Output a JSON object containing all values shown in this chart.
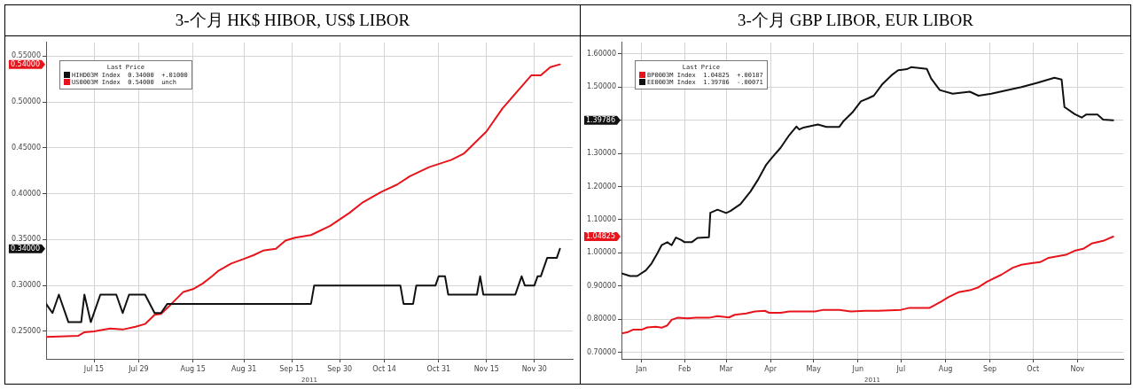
{
  "chart_data": [
    {
      "type": "line",
      "title": "3-个月  HK$ HIBOR, US$ LIBOR",
      "xlabel": "2011",
      "legend_title": "Last Price",
      "legend": "top left",
      "grid": true,
      "marker": "none",
      "xlim": [
        "2011-06-30",
        "2011-12-12"
      ],
      "xticks": [
        {
          "value": "2011-07-15",
          "label": "Jul 15"
        },
        {
          "value": "2011-07-29",
          "label": "Jul 29"
        },
        {
          "value": "2011-08-15",
          "label": "Aug 15"
        },
        {
          "value": "2011-08-31",
          "label": "Aug 31"
        },
        {
          "value": "2011-09-15",
          "label": "Sep 15"
        },
        {
          "value": "2011-09-30",
          "label": "Sep 30"
        },
        {
          "value": "2011-10-14",
          "label": "Oct 14"
        },
        {
          "value": "2011-10-31",
          "label": "Oct 31"
        },
        {
          "value": "2011-11-15",
          "label": "Nov 15"
        },
        {
          "value": "2011-11-30",
          "label": "Nov 30"
        }
      ],
      "ylim": [
        0.22,
        0.565
      ],
      "yticks": [
        {
          "value": 0.25,
          "label": "0.25000"
        },
        {
          "value": 0.3,
          "label": "0.30000"
        },
        {
          "value": 0.35,
          "label": "0.35000"
        },
        {
          "value": 0.4,
          "label": "0.40000"
        },
        {
          "value": 0.45,
          "label": "0.45000"
        },
        {
          "value": 0.5,
          "label": "0.50000"
        },
        {
          "value": 0.55,
          "label": "0.55000"
        }
      ],
      "annotations": [
        "0.34000",
        "0.54000"
      ],
      "series": [
        {
          "name": "HIHD03M Index  0.34000  +.01000",
          "color": "#111111",
          "x": [
            "2011-06-30",
            "2011-07-02",
            "2011-07-04",
            "2011-07-07",
            "2011-07-11",
            "2011-07-12",
            "2011-07-14",
            "2011-07-17",
            "2011-07-22",
            "2011-07-24",
            "2011-07-26",
            "2011-07-31",
            "2011-08-03",
            "2011-08-05",
            "2011-08-07",
            "2011-09-21",
            "2011-09-22",
            "2011-10-19",
            "2011-10-20",
            "2011-10-23",
            "2011-10-24",
            "2011-10-30",
            "2011-10-31",
            "2011-11-02",
            "2011-11-03",
            "2011-11-12",
            "2011-11-13",
            "2011-11-14",
            "2011-11-24",
            "2011-11-26",
            "2011-11-27",
            "2011-11-30",
            "2011-12-01",
            "2011-12-02",
            "2011-12-04",
            "2011-12-07",
            "2011-12-08"
          ],
          "values": [
            0.28,
            0.27,
            0.29,
            0.26,
            0.26,
            0.29,
            0.26,
            0.29,
            0.29,
            0.27,
            0.29,
            0.29,
            0.27,
            0.27,
            0.28,
            0.28,
            0.3,
            0.3,
            0.28,
            0.28,
            0.3,
            0.3,
            0.31,
            0.31,
            0.29,
            0.29,
            0.31,
            0.29,
            0.29,
            0.31,
            0.3,
            0.3,
            0.31,
            0.31,
            0.33,
            0.33,
            0.34
          ]
        },
        {
          "name": "US0003M Index  0.54000  unch",
          "color": "#e8141b",
          "x": [
            "2011-06-30",
            "2011-07-10",
            "2011-07-12",
            "2011-07-15",
            "2011-07-20",
            "2011-07-24",
            "2011-07-28",
            "2011-07-31",
            "2011-08-03",
            "2011-08-05",
            "2011-08-08",
            "2011-08-12",
            "2011-08-15",
            "2011-08-18",
            "2011-08-21",
            "2011-08-23",
            "2011-08-27",
            "2011-08-31",
            "2011-09-03",
            "2011-09-06",
            "2011-09-10",
            "2011-09-13",
            "2011-09-16",
            "2011-09-21",
            "2011-09-27",
            "2011-10-03",
            "2011-10-07",
            "2011-10-13",
            "2011-10-18",
            "2011-10-22",
            "2011-10-28",
            "2011-11-04",
            "2011-11-08",
            "2011-11-15",
            "2011-11-20",
            "2011-11-25",
            "2011-11-29",
            "2011-12-02",
            "2011-12-05",
            "2011-12-08"
          ],
          "values": [
            0.244,
            0.245,
            0.249,
            0.25,
            0.253,
            0.252,
            0.255,
            0.258,
            0.268,
            0.269,
            0.279,
            0.293,
            0.296,
            0.302,
            0.31,
            0.316,
            0.324,
            0.329,
            0.333,
            0.338,
            0.34,
            0.349,
            0.352,
            0.355,
            0.365,
            0.379,
            0.39,
            0.402,
            0.41,
            0.419,
            0.429,
            0.437,
            0.444,
            0.468,
            0.493,
            0.513,
            0.529,
            0.529,
            0.538,
            0.541
          ]
        }
      ]
    },
    {
      "type": "line",
      "title": "3-个月  GBP LIBOR, EUR LIBOR",
      "xlabel": "2011",
      "legend_title": "Last Price",
      "legend": "top left",
      "grid": true,
      "marker": "none",
      "xlim": [
        "2011-01-01",
        "2011-12-17"
      ],
      "xticks": [
        {
          "value": "2011-01-15",
          "label": "Jan"
        },
        {
          "value": "2011-02-14",
          "label": "Feb"
        },
        {
          "value": "2011-03-15",
          "label": "Mar"
        },
        {
          "value": "2011-04-15",
          "label": "Apr"
        },
        {
          "value": "2011-05-15",
          "label": "May"
        },
        {
          "value": "2011-06-15",
          "label": "Jun"
        },
        {
          "value": "2011-07-15",
          "label": "Jul"
        },
        {
          "value": "2011-08-15",
          "label": "Aug"
        },
        {
          "value": "2011-09-15",
          "label": "Sep"
        },
        {
          "value": "2011-10-15",
          "label": "Oct"
        },
        {
          "value": "2011-11-15",
          "label": "Nov"
        }
      ],
      "ylim": [
        0.68,
        1.635
      ],
      "yticks": [
        {
          "value": 0.7,
          "label": "0.70000"
        },
        {
          "value": 0.8,
          "label": "0.80000"
        },
        {
          "value": 0.9,
          "label": "0.90000"
        },
        {
          "value": 1.0,
          "label": "1.00000"
        },
        {
          "value": 1.1,
          "label": "1.10000"
        },
        {
          "value": 1.2,
          "label": "1.20000"
        },
        {
          "value": 1.3,
          "label": "1.30000"
        },
        {
          "value": 1.4,
          "label": null
        },
        {
          "value": 1.5,
          "label": "1.50000"
        },
        {
          "value": 1.6,
          "label": "1.60000"
        }
      ],
      "annotations": [
        "1.04825",
        "1.39786"
      ],
      "series": [
        {
          "name": "BP0003M Index  1.04825  +.00187",
          "color": "#e8141b",
          "x": [
            "2011-01-01",
            "2011-01-05",
            "2011-01-09",
            "2011-01-15",
            "2011-01-19",
            "2011-01-25",
            "2011-01-29",
            "2011-02-02",
            "2011-02-05",
            "2011-02-09",
            "2011-02-16",
            "2011-02-22",
            "2011-03-03",
            "2011-03-09",
            "2011-03-17",
            "2011-03-21",
            "2011-03-29",
            "2011-04-04",
            "2011-04-11",
            "2011-04-14",
            "2011-04-22",
            "2011-04-28",
            "2011-05-16",
            "2011-05-22",
            "2011-06-02",
            "2011-06-10",
            "2011-06-20",
            "2011-06-29",
            "2011-07-15",
            "2011-07-21",
            "2011-08-04",
            "2011-08-12",
            "2011-08-17",
            "2011-08-24",
            "2011-09-01",
            "2011-09-07",
            "2011-09-13",
            "2011-09-23",
            "2011-10-01",
            "2011-10-07",
            "2011-10-13",
            "2011-10-20",
            "2011-10-26",
            "2011-11-07",
            "2011-11-13",
            "2011-11-19",
            "2011-11-25",
            "2011-12-03",
            "2011-12-10"
          ],
          "values": [
            0.757,
            0.76,
            0.768,
            0.768,
            0.775,
            0.777,
            0.774,
            0.781,
            0.798,
            0.804,
            0.802,
            0.804,
            0.804,
            0.809,
            0.805,
            0.813,
            0.817,
            0.823,
            0.825,
            0.819,
            0.819,
            0.823,
            0.823,
            0.828,
            0.828,
            0.823,
            0.825,
            0.825,
            0.828,
            0.834,
            0.834,
            0.853,
            0.866,
            0.881,
            0.887,
            0.896,
            0.913,
            0.934,
            0.955,
            0.964,
            0.968,
            0.972,
            0.985,
            0.994,
            1.006,
            1.012,
            1.028,
            1.036,
            1.049
          ]
        },
        {
          "name": "EE0003M Index  1.39786  -.00071",
          "color": "#111111",
          "x": [
            "2011-01-01",
            "2011-01-07",
            "2011-01-12",
            "2011-01-18",
            "2011-01-22",
            "2011-01-26",
            "2011-01-29",
            "2011-02-02",
            "2011-02-05",
            "2011-02-08",
            "2011-02-12",
            "2011-02-14",
            "2011-02-19",
            "2011-02-23",
            "2011-03-03",
            "2011-03-04",
            "2011-03-09",
            "2011-03-15",
            "2011-03-18",
            "2011-03-25",
            "2011-04-01",
            "2011-04-06",
            "2011-04-12",
            "2011-04-16",
            "2011-04-22",
            "2011-04-28",
            "2011-05-03",
            "2011-05-05",
            "2011-05-08",
            "2011-05-18",
            "2011-05-24",
            "2011-06-02",
            "2011-06-05",
            "2011-06-11",
            "2011-06-17",
            "2011-06-22",
            "2011-06-26",
            "2011-07-02",
            "2011-07-09",
            "2011-07-13",
            "2011-07-19",
            "2011-07-22",
            "2011-08-02",
            "2011-08-05",
            "2011-08-11",
            "2011-08-20",
            "2011-09-01",
            "2011-09-07",
            "2011-09-16",
            "2011-09-25",
            "2011-10-07",
            "2011-10-18",
            "2011-10-30",
            "2011-11-04",
            "2011-11-06",
            "2011-11-13",
            "2011-11-18",
            "2011-11-21",
            "2011-11-29",
            "2011-12-03",
            "2011-12-10"
          ],
          "values": [
            0.938,
            0.93,
            0.93,
            0.947,
            0.968,
            0.998,
            1.023,
            1.032,
            1.023,
            1.046,
            1.038,
            1.032,
            1.032,
            1.045,
            1.047,
            1.121,
            1.13,
            1.12,
            1.126,
            1.147,
            1.185,
            1.219,
            1.266,
            1.287,
            1.317,
            1.355,
            1.381,
            1.372,
            1.378,
            1.387,
            1.38,
            1.38,
            1.398,
            1.423,
            1.457,
            1.466,
            1.474,
            1.509,
            1.538,
            1.551,
            1.554,
            1.56,
            1.555,
            1.526,
            1.491,
            1.48,
            1.486,
            1.474,
            1.48,
            1.489,
            1.5,
            1.513,
            1.528,
            1.523,
            1.44,
            1.419,
            1.408,
            1.417,
            1.417,
            1.402,
            1.4
          ]
        }
      ]
    }
  ]
}
